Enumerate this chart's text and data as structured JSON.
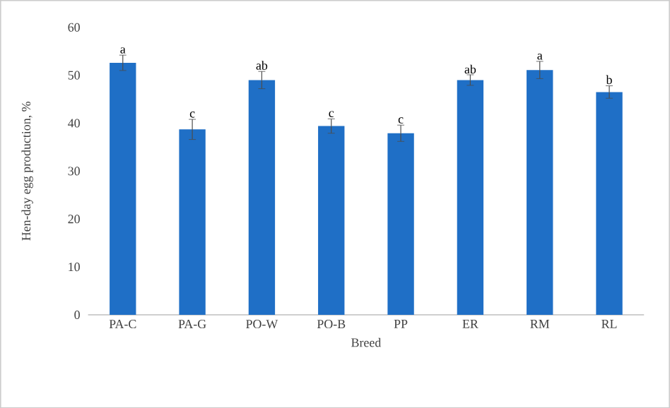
{
  "chart_data": {
    "type": "bar",
    "xlabel": "Breed",
    "ylabel": "Hen-day egg production, %",
    "categories": [
      "PA-C",
      "PA-G",
      "PO-W",
      "PO-B",
      "PP",
      "ER",
      "RM",
      "RL"
    ],
    "values": [
      52.6,
      38.7,
      49.0,
      39.4,
      37.9,
      49.0,
      51.1,
      46.5
    ],
    "errors": [
      1.6,
      2.1,
      1.8,
      1.5,
      1.7,
      1.1,
      1.8,
      1.3
    ],
    "color": "#1f6fc6",
    "ylim": [
      0,
      60
    ],
    "yticks": [
      0,
      10,
      20,
      30,
      40,
      50,
      60
    ],
    "annotations": [
      {
        "text": "a",
        "x": "PA-C",
        "y": 54.2
      },
      {
        "text": "c",
        "x": "PA-G",
        "y": 40.8
      },
      {
        "text": "ab",
        "x": "PO-W",
        "y": 50.8
      },
      {
        "text": "c",
        "x": "PO-B",
        "y": 40.9
      },
      {
        "text": "c",
        "x": "PP",
        "y": 39.6
      },
      {
        "text": "ab",
        "x": "ER",
        "y": 50.0
      },
      {
        "text": "a",
        "x": "RM",
        "y": 52.9
      },
      {
        "text": "b",
        "x": "RL",
        "y": 47.8
      }
    ]
  }
}
